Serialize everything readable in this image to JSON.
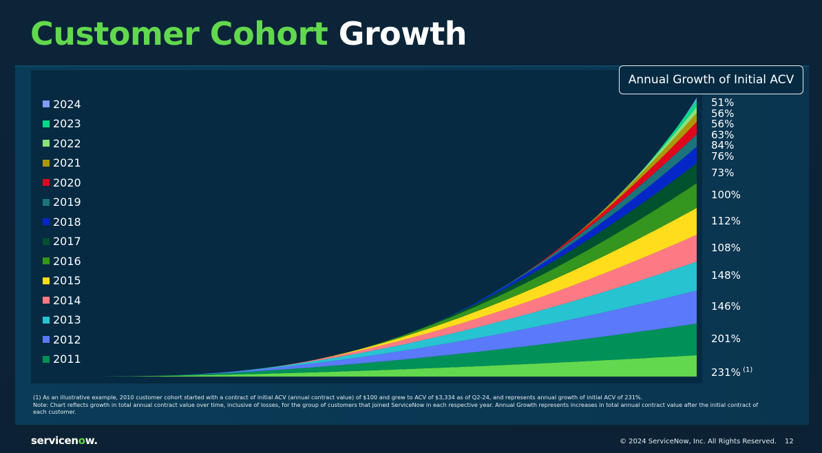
{
  "title": {
    "part1": "Customer Cohort",
    "part2": "Growth"
  },
  "chart_data": {
    "type": "area",
    "stacked": true,
    "title": "Annual Growth of Initial ACV",
    "x_range": [
      2010,
      2024.5
    ],
    "ylim": [
      0,
      405
    ],
    "series": [
      {
        "name": "2010",
        "start": 2010,
        "end_value": 31,
        "color": "#62d84e",
        "growth_label": "231%"
      },
      {
        "name": "2011",
        "start": 2011,
        "end_value": 46,
        "color": "#009158",
        "growth_label": "201%"
      },
      {
        "name": "2012",
        "start": 2012,
        "end_value": 48,
        "color": "#5a79fb",
        "growth_label": "146%"
      },
      {
        "name": "2013",
        "start": 2013,
        "end_value": 42,
        "color": "#27c3d0",
        "growth_label": "148%"
      },
      {
        "name": "2014",
        "start": 2014,
        "end_value": 39,
        "color": "#fd7a85",
        "growth_label": "108%"
      },
      {
        "name": "2015",
        "start": 2015,
        "end_value": 39,
        "color": "#ffdd1c",
        "growth_label": "112%"
      },
      {
        "name": "2016",
        "start": 2016,
        "end_value": 36,
        "color": "#34951f",
        "growth_label": "100%"
      },
      {
        "name": "2017",
        "start": 2017,
        "end_value": 29,
        "color": "#02512f",
        "growth_label": "73%"
      },
      {
        "name": "2018",
        "start": 2018,
        "end_value": 24,
        "color": "#0627c8",
        "growth_label": "76%"
      },
      {
        "name": "2019",
        "start": 2019,
        "end_value": 18,
        "color": "#1b737b",
        "growth_label": "84%"
      },
      {
        "name": "2020",
        "start": 2020,
        "end_value": 18,
        "color": "#e0061e",
        "growth_label": "63%"
      },
      {
        "name": "2021",
        "start": 2021,
        "end_value": 13,
        "color": "#ad9705",
        "growth_label": "56%"
      },
      {
        "name": "2022",
        "start": 2022,
        "end_value": 9,
        "color": "#88e27a",
        "growth_label": "56%"
      },
      {
        "name": "2023",
        "start": 2023,
        "end_value": 10,
        "color": "#05d98a",
        "growth_label": "51%"
      },
      {
        "name": "2024",
        "start": 2024,
        "end_value": 3,
        "color": "#7f9dfd",
        "growth_label": null
      }
    ],
    "legend": [
      "2024",
      "2023",
      "2022",
      "2021",
      "2020",
      "2019",
      "2018",
      "2017",
      "2016",
      "2015",
      "2014",
      "2013",
      "2012",
      "2011"
    ],
    "legend_placement": "left",
    "footnote_marker": "(1)"
  },
  "notes": {
    "line1": "(1) As an illustrative example, 2010 customer cohort started with a contract of initial ACV (annual contract value) of $100 and grew to ACV of $3,334 as of Q2-24, and represents annual growth of initial ACV of 231%.",
    "line2": "Note: Chart reflects growth in total annual contract value over time, inclusive of losses, for the group of customers that joined ServiceNow in each respective year.  Annual Growth represents increases in total annual contract value after the initial contract of each customer."
  },
  "footer": {
    "logo": "servicenow",
    "logo_main": "servicen",
    "logo_o": "o",
    "logo_end": "w.",
    "copyright": "© 2024 ServiceNow, Inc. All Rights Reserved.",
    "page": "12"
  }
}
